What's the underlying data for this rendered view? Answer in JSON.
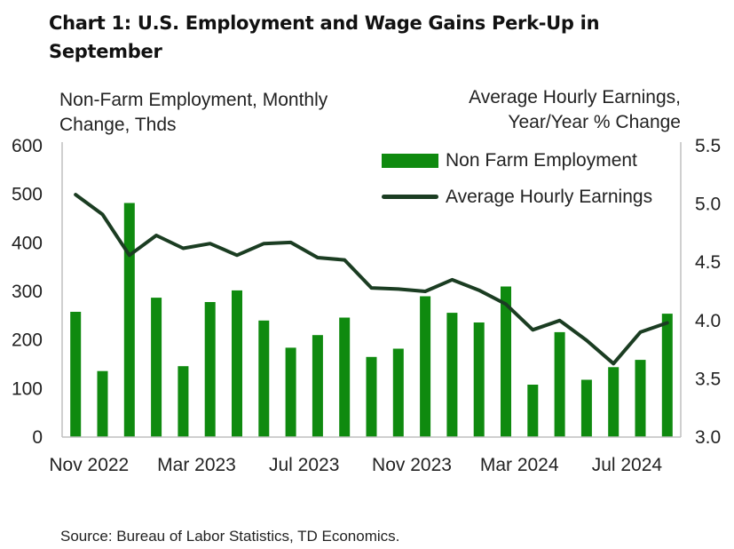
{
  "title": "Chart 1: U.S. Employment and Wage Gains Perk-Up in September",
  "left_axis_title": "Non-Farm Employment, Monthly Change, Thds",
  "right_axis_title": "Average Hourly Earnings, Year/Year % Change",
  "source": "Source:  Bureau of Labor Statistics, TD Economics.",
  "colors": {
    "bars": "#0f8a0f",
    "line": "#1b3d22",
    "axis": "#bfbfbf"
  },
  "chart_data": {
    "type": "bar",
    "title": "Chart 1: U.S. Employment and Wage Gains Perk-Up in September",
    "x_tick_labels": [
      "Nov 2022",
      "Mar 2023",
      "Jul 2023",
      "Nov 2023",
      "Mar 2024",
      "Jul 2024"
    ],
    "categories": [
      "Nov 2022",
      "Dec 2022",
      "Jan 2023",
      "Feb 2023",
      "Mar 2023",
      "Apr 2023",
      "May 2023",
      "Jun 2023",
      "Jul 2023",
      "Aug 2023",
      "Sep 2023",
      "Oct 2023",
      "Nov 2023",
      "Dec 2023",
      "Jan 2024",
      "Feb 2024",
      "Mar 2024",
      "Apr 2024",
      "May 2024",
      "Jun 2024",
      "Jul 2024",
      "Aug 2024",
      "Sep 2024"
    ],
    "series": [
      {
        "name": "Non Farm Employment",
        "type": "bar",
        "axis": "left",
        "values": [
          258,
          136,
          482,
          287,
          146,
          278,
          302,
          240,
          184,
          210,
          246,
          165,
          182,
          290,
          256,
          236,
          310,
          108,
          216,
          118,
          144,
          159,
          254
        ]
      },
      {
        "name": "Average Hourly Earnings",
        "type": "line",
        "axis": "right",
        "values": [
          5.08,
          4.91,
          4.56,
          4.73,
          4.62,
          4.66,
          4.56,
          4.66,
          4.67,
          4.54,
          4.52,
          4.28,
          4.27,
          4.25,
          4.35,
          4.26,
          4.14,
          3.92,
          4.0,
          3.83,
          3.63,
          3.9,
          3.98
        ]
      }
    ],
    "left_axis": {
      "ylim": [
        0,
        600
      ],
      "ticks": [
        "0",
        "100",
        "200",
        "300",
        "400",
        "500",
        "600"
      ]
    },
    "right_axis": {
      "ylim": [
        3.0,
        5.5
      ],
      "ticks": [
        "3.0",
        "3.5",
        "4.0",
        "4.5",
        "5.0",
        "5.5"
      ]
    },
    "legend_position": "top-right",
    "grid": false
  }
}
